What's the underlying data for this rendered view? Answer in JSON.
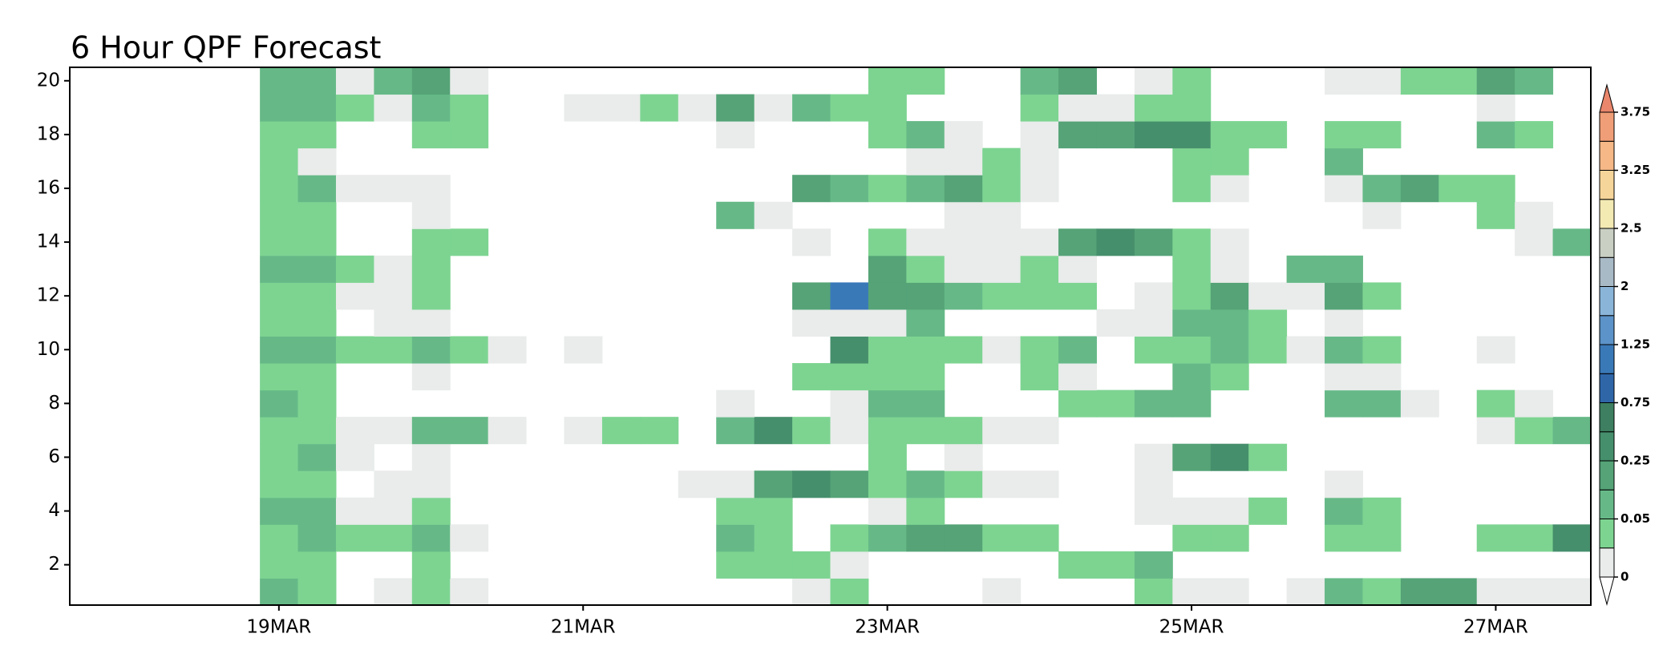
{
  "chart_data": {
    "type": "heatmap",
    "title": "6 Hour QPF Forecast",
    "categories": [
      null,
      null,
      null,
      null,
      null,
      "19MAR",
      null,
      null,
      null,
      null,
      null,
      null,
      null,
      "21MAR",
      null,
      null,
      null,
      null,
      null,
      null,
      null,
      "23MAR",
      null,
      null,
      null,
      null,
      null,
      null,
      null,
      "25MAR",
      null,
      null,
      null,
      null,
      null,
      null,
      null,
      "27MAR",
      null,
      null
    ],
    "y": [
      1,
      2,
      3,
      4,
      5,
      6,
      7,
      8,
      9,
      10,
      11,
      12,
      13,
      14,
      15,
      16,
      17,
      18,
      19,
      20
    ],
    "ylim": [
      0.5,
      20.5
    ],
    "yticks": [
      2,
      4,
      6,
      8,
      10,
      12,
      14,
      16,
      18,
      20
    ],
    "values": [
      [
        null,
        null,
        null,
        null,
        null,
        0.1,
        0.04,
        null,
        0.01,
        0.04,
        0.01,
        null,
        null,
        null,
        null,
        null,
        null,
        null,
        null,
        0.01,
        0.04,
        null,
        null,
        null,
        0.01,
        null,
        null,
        null,
        0.04,
        0.01,
        0.01,
        null,
        0.01,
        0.1,
        0.04,
        0.2,
        0.2,
        0.01,
        0.01,
        0.01
      ],
      [
        null,
        null,
        null,
        null,
        null,
        0.04,
        0.04,
        null,
        null,
        0.04,
        null,
        null,
        null,
        null,
        null,
        null,
        null,
        0.04,
        0.04,
        0.04,
        0.01,
        null,
        null,
        null,
        null,
        null,
        0.04,
        0.04,
        0.1,
        null,
        null,
        null,
        null,
        null,
        null,
        null,
        null,
        null,
        null,
        null
      ],
      [
        null,
        null,
        null,
        null,
        null,
        0.04,
        0.1,
        0.04,
        0.04,
        0.1,
        0.01,
        null,
        null,
        null,
        null,
        null,
        null,
        0.1,
        0.04,
        null,
        0.04,
        0.1,
        0.2,
        0.2,
        0.04,
        0.04,
        null,
        null,
        null,
        0.04,
        0.04,
        null,
        null,
        0.04,
        0.04,
        null,
        null,
        0.04,
        0.04,
        0.35
      ],
      [
        null,
        null,
        null,
        null,
        null,
        0.1,
        0.1,
        0.01,
        0.01,
        0.04,
        null,
        null,
        null,
        null,
        null,
        null,
        null,
        0.04,
        0.04,
        null,
        null,
        0.01,
        0.04,
        null,
        null,
        null,
        null,
        null,
        0.01,
        0.01,
        0.01,
        0.04,
        null,
        0.1,
        0.04,
        null,
        null,
        null,
        null,
        null
      ],
      [
        null,
        null,
        null,
        null,
        null,
        0.04,
        0.04,
        null,
        0.01,
        0.01,
        null,
        null,
        null,
        null,
        null,
        null,
        0.01,
        0.01,
        0.2,
        0.35,
        0.2,
        0.04,
        0.1,
        0.04,
        0.01,
        0.01,
        null,
        null,
        0.01,
        null,
        null,
        null,
        null,
        0.01,
        null,
        null,
        null,
        null,
        null,
        null
      ],
      [
        null,
        null,
        null,
        null,
        null,
        0.04,
        0.1,
        0.01,
        null,
        0.01,
        null,
        null,
        null,
        null,
        null,
        null,
        null,
        null,
        null,
        null,
        null,
        0.04,
        null,
        0.01,
        null,
        null,
        null,
        null,
        0.01,
        0.2,
        0.35,
        0.04,
        null,
        null,
        null,
        null,
        null,
        null,
        null,
        null
      ],
      [
        null,
        null,
        null,
        null,
        null,
        0.04,
        0.04,
        0.01,
        0.01,
        0.1,
        0.1,
        0.01,
        null,
        0.01,
        0.04,
        0.04,
        null,
        0.1,
        0.35,
        0.04,
        0.01,
        0.04,
        0.04,
        0.04,
        0.01,
        0.01,
        null,
        null,
        null,
        null,
        null,
        null,
        null,
        null,
        null,
        null,
        null,
        0.01,
        0.04,
        0.1
      ],
      [
        null,
        null,
        null,
        null,
        null,
        0.1,
        0.04,
        null,
        null,
        null,
        null,
        null,
        null,
        null,
        null,
        null,
        null,
        0.01,
        null,
        null,
        0.01,
        0.1,
        0.1,
        null,
        null,
        null,
        0.04,
        0.04,
        0.1,
        0.1,
        null,
        null,
        null,
        0.1,
        0.1,
        0.01,
        null,
        0.04,
        0.01,
        null
      ],
      [
        null,
        null,
        null,
        null,
        null,
        0.04,
        0.04,
        null,
        null,
        0.01,
        null,
        null,
        null,
        null,
        null,
        null,
        null,
        null,
        null,
        0.04,
        0.04,
        0.04,
        0.04,
        null,
        null,
        0.04,
        0.01,
        null,
        null,
        0.1,
        0.04,
        null,
        null,
        0.01,
        0.01,
        null,
        null,
        null,
        null,
        null
      ],
      [
        null,
        null,
        null,
        null,
        null,
        0.1,
        0.1,
        0.04,
        0.04,
        0.1,
        0.04,
        0.01,
        null,
        0.01,
        null,
        null,
        null,
        null,
        null,
        null,
        0.35,
        0.04,
        0.04,
        0.04,
        0.01,
        0.04,
        0.1,
        null,
        0.04,
        0.04,
        0.1,
        0.04,
        0.01,
        0.1,
        0.04,
        null,
        null,
        0.01,
        null,
        null
      ],
      [
        null,
        null,
        null,
        null,
        null,
        0.04,
        0.04,
        null,
        0.01,
        0.01,
        null,
        null,
        null,
        null,
        null,
        null,
        null,
        null,
        null,
        0.01,
        0.01,
        0.01,
        0.1,
        null,
        null,
        null,
        null,
        0.01,
        0.01,
        0.1,
        0.1,
        0.04,
        null,
        0.01,
        null,
        null,
        null,
        null,
        null,
        null
      ],
      [
        null,
        null,
        null,
        null,
        null,
        0.04,
        0.04,
        0.01,
        0.01,
        0.04,
        null,
        null,
        null,
        null,
        null,
        null,
        null,
        null,
        null,
        0.2,
        1.1,
        0.2,
        0.2,
        0.1,
        0.04,
        0.04,
        0.04,
        null,
        0.01,
        0.04,
        0.2,
        0.01,
        0.01,
        0.2,
        0.04,
        null,
        null,
        null,
        null,
        null
      ],
      [
        null,
        null,
        null,
        null,
        null,
        0.1,
        0.1,
        0.04,
        0.01,
        0.04,
        null,
        null,
        null,
        null,
        null,
        null,
        null,
        null,
        null,
        null,
        null,
        0.2,
        0.04,
        0.01,
        0.01,
        0.04,
        0.01,
        null,
        null,
        0.04,
        0.01,
        null,
        0.1,
        0.1,
        null,
        null,
        null,
        null,
        null,
        null
      ],
      [
        null,
        null,
        null,
        null,
        null,
        0.04,
        0.04,
        null,
        null,
        0.04,
        0.04,
        null,
        null,
        null,
        null,
        null,
        null,
        null,
        null,
        0.01,
        null,
        0.04,
        0.01,
        0.01,
        0.01,
        0.01,
        0.2,
        0.35,
        0.2,
        0.04,
        0.01,
        null,
        null,
        null,
        null,
        null,
        null,
        null,
        0.01,
        0.1
      ],
      [
        null,
        null,
        null,
        null,
        null,
        0.04,
        0.04,
        null,
        null,
        0.01,
        null,
        null,
        null,
        null,
        null,
        null,
        null,
        0.1,
        0.01,
        null,
        null,
        null,
        null,
        0.01,
        0.01,
        null,
        null,
        null,
        null,
        null,
        null,
        null,
        null,
        null,
        0.01,
        null,
        null,
        0.04,
        0.01,
        null
      ],
      [
        null,
        null,
        null,
        null,
        null,
        0.04,
        0.1,
        0.01,
        0.01,
        0.01,
        null,
        null,
        null,
        null,
        null,
        null,
        null,
        null,
        null,
        0.2,
        0.1,
        0.04,
        0.1,
        0.2,
        0.04,
        0.01,
        null,
        null,
        null,
        0.04,
        0.01,
        null,
        null,
        0.01,
        0.1,
        0.2,
        0.04,
        0.04,
        null,
        null
      ],
      [
        null,
        null,
        null,
        null,
        null,
        0.04,
        0.01,
        null,
        null,
        null,
        null,
        null,
        null,
        null,
        null,
        null,
        null,
        null,
        null,
        null,
        null,
        null,
        0.01,
        0.01,
        0.04,
        0.01,
        null,
        null,
        null,
        0.04,
        0.04,
        null,
        null,
        0.1,
        null,
        null,
        null,
        null,
        null,
        null
      ],
      [
        null,
        null,
        null,
        null,
        null,
        0.04,
        0.04,
        null,
        null,
        0.04,
        0.04,
        null,
        null,
        null,
        null,
        null,
        null,
        0.01,
        null,
        null,
        null,
        0.04,
        0.1,
        0.01,
        null,
        0.01,
        0.2,
        0.2,
        0.35,
        0.35,
        0.04,
        0.04,
        null,
        0.04,
        0.04,
        null,
        null,
        0.1,
        0.04,
        null
      ],
      [
        null,
        null,
        null,
        null,
        null,
        0.1,
        0.1,
        0.04,
        0.01,
        0.1,
        0.04,
        null,
        null,
        0.01,
        0.01,
        0.04,
        0.01,
        0.2,
        0.01,
        0.1,
        0.04,
        0.04,
        null,
        null,
        null,
        0.04,
        0.01,
        0.01,
        0.04,
        0.04,
        null,
        null,
        null,
        null,
        null,
        null,
        null,
        0.01,
        null,
        null
      ],
      [
        null,
        null,
        null,
        null,
        null,
        0.1,
        0.1,
        0.01,
        0.1,
        0.2,
        0.01,
        null,
        null,
        null,
        null,
        null,
        null,
        null,
        null,
        null,
        null,
        0.04,
        0.04,
        null,
        null,
        0.1,
        0.2,
        null,
        0.01,
        0.04,
        null,
        null,
        null,
        0.01,
        0.01,
        0.04,
        0.04,
        0.2,
        0.1,
        null
      ]
    ],
    "colorbar": {
      "ticks": [
        0,
        0.05,
        0.25,
        0.75,
        1.25,
        2,
        2.5,
        3.25,
        3.75
      ],
      "colors": [
        "#e9ecea",
        "#7dd491",
        "#66b987",
        "#55a377",
        "#468f6c",
        "#3d7f60",
        "#2f66a8",
        "#3a79b8",
        "#5c93c8",
        "#8ab5d9",
        "#a8bac6",
        "#c9cfc3",
        "#f3e9b3",
        "#f6d59a",
        "#f5b886",
        "#f09e77"
      ],
      "under": "#ffffff",
      "over": "#e9866c"
    }
  }
}
